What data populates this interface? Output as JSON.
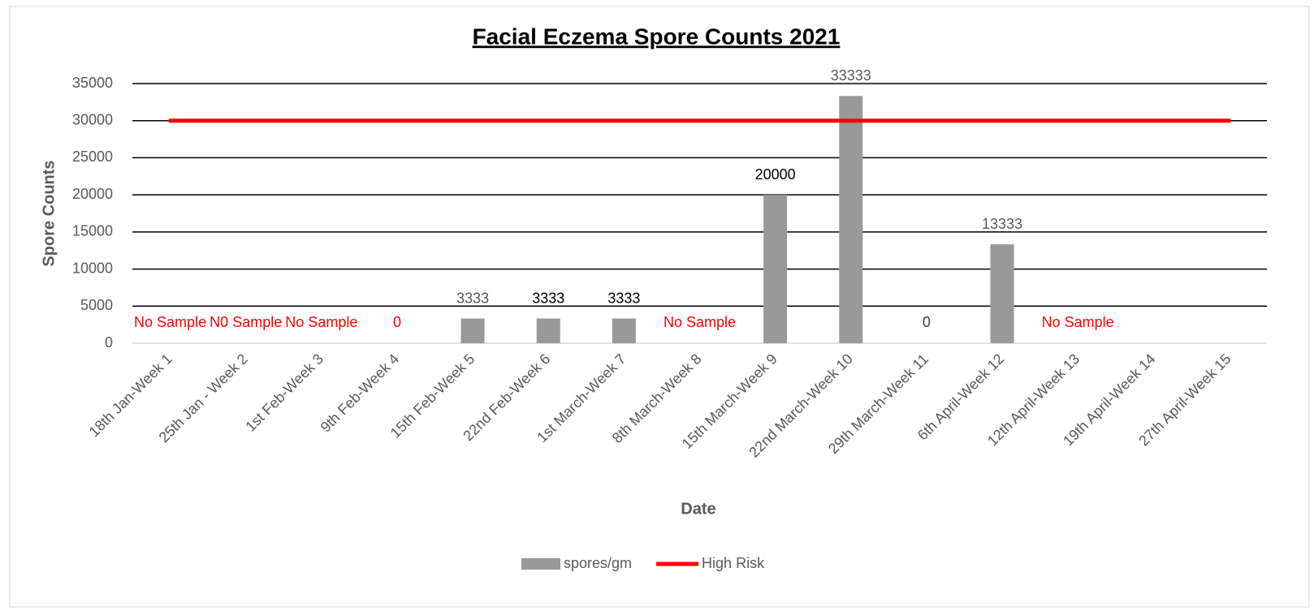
{
  "chart_data": {
    "type": "bar",
    "title": "Facial Eczema Spore Counts 2021",
    "x_label": "Date",
    "y_label": "Spore Counts",
    "categories": [
      "18th Jan-Week 1",
      "25th Jan - Week 2",
      "1st Feb-Week 3",
      "9th Feb-Week 4",
      "15th Feb-Week 5",
      "22nd Feb-Week 6",
      "1st March-Week 7",
      "8th March-Week 8",
      "15th March-Week 9",
      "22nd March-Week 10",
      "29th March-Week 11",
      "6th April-Week 12",
      "12th April-Week 13",
      "19th April-Week 14",
      "27th April-Week 15"
    ],
    "series": [
      {
        "name": "spores/gm",
        "type": "bar",
        "color": "#999999",
        "values": [
          null,
          null,
          null,
          0,
          3333,
          3333,
          3333,
          null,
          20000,
          33333,
          0,
          13333,
          null,
          null,
          null
        ],
        "value_labels": [
          "No Sample",
          "N0 Sample",
          "No Sample",
          "0",
          "3333",
          "3333",
          "3333",
          "No Sample",
          "20000",
          "33333",
          "0",
          "13333",
          "No Sample",
          null,
          null
        ],
        "value_label_colors": [
          "#ff0000",
          "#ff0000",
          "#ff0000",
          "#ff0000",
          "#595959",
          "#000000",
          "#000000",
          "#ff0000",
          "#000000",
          "#595959",
          "#404040",
          "#595959",
          "#ff0000",
          null,
          null
        ]
      },
      {
        "name": "High Risk",
        "type": "line",
        "color": "#ff0000",
        "values": [
          30000,
          30000,
          30000,
          30000,
          30000,
          30000,
          30000,
          30000,
          30000,
          30000,
          30000,
          30000,
          30000,
          30000,
          30000
        ]
      }
    ],
    "ylim": [
      0,
      35000
    ],
    "yticks": [
      0,
      5000,
      10000,
      15000,
      20000,
      25000,
      30000,
      35000
    ],
    "grid": true,
    "legend": "bottom"
  }
}
